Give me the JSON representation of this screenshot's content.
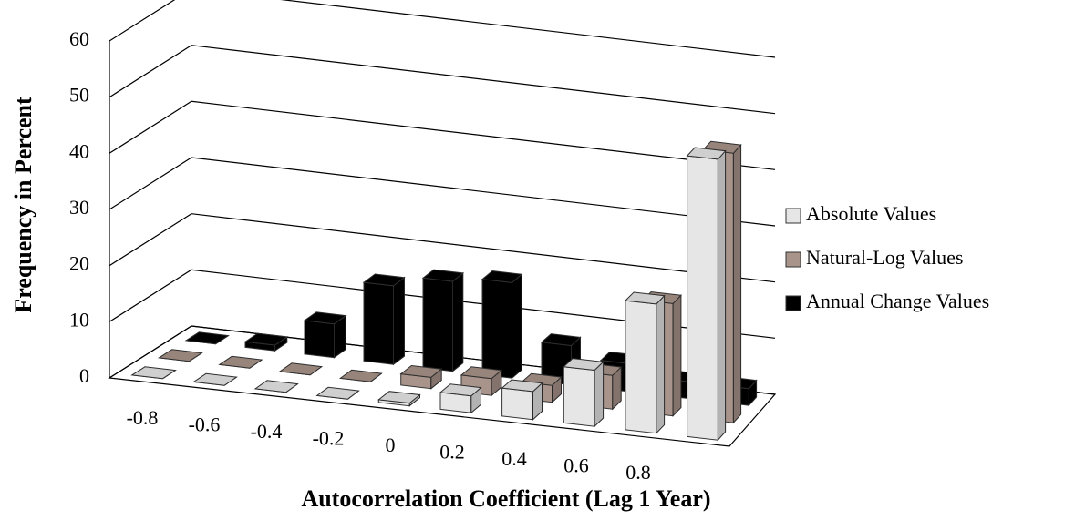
{
  "chart_data": {
    "type": "bar3d",
    "x_label": "Autocorrelation Coefficient (Lag 1 Year)",
    "y_label": "Frequency in Percent",
    "categories": [
      "-0.8",
      "-0.6",
      "-0.4",
      "-0.2",
      "0",
      "0.2",
      "0.4",
      "0.6",
      "0.8",
      null
    ],
    "series": [
      {
        "name": "Absolute Values",
        "color": "#e6e6e6",
        "values": [
          0,
          0,
          0,
          0,
          0.5,
          3,
          5,
          10,
          23,
          50
        ]
      },
      {
        "name": "Natural-Log Values",
        "color": "#a8948a",
        "values": [
          0,
          0,
          0,
          0,
          2,
          3,
          3,
          6,
          20,
          48
        ]
      },
      {
        "name": "Annual Change Values",
        "color": "#000000",
        "values": [
          0,
          1,
          6,
          14,
          16,
          17,
          7,
          5,
          3,
          3
        ]
      }
    ],
    "ylim": [
      0,
      60
    ],
    "yticks": [
      0,
      10,
      20,
      30,
      40,
      50,
      60
    ],
    "grid": true,
    "legend": "right"
  }
}
